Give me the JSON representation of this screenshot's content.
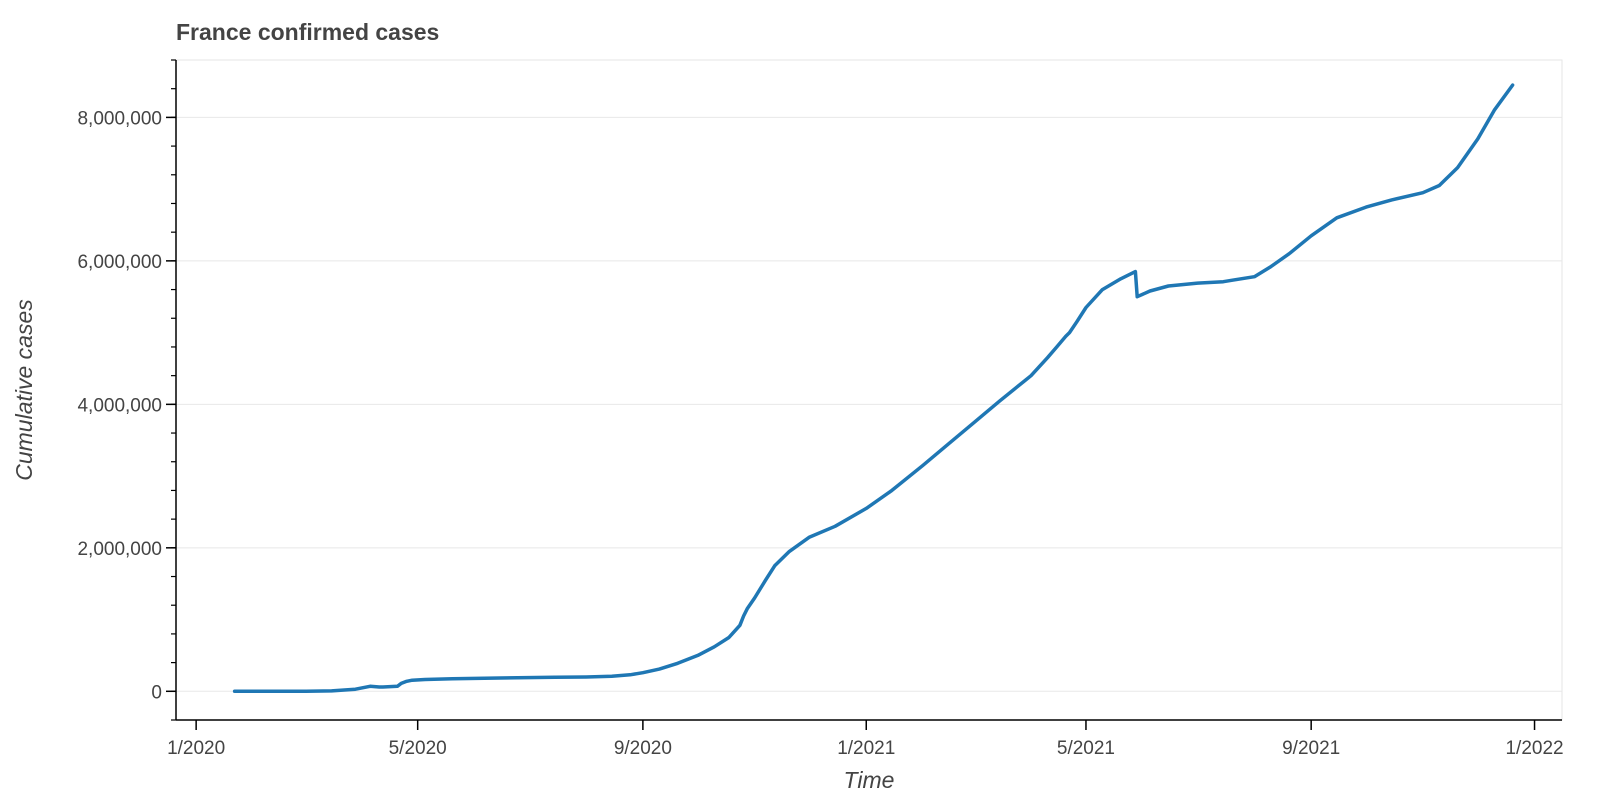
{
  "chart_data": {
    "type": "line",
    "title": "France confirmed cases",
    "xlabel": "Time",
    "ylabel": "Cumulative cases",
    "xlim": [
      "2019-12-21",
      "2022-01-16"
    ],
    "ylim": [
      -400000,
      8800000
    ],
    "grid": {
      "x": false,
      "y": true
    },
    "legend": "none",
    "colors": {
      "line": "#1f77b4",
      "axis": "#000000",
      "grid": "#e8e8e8",
      "frame": "#e6e6e6",
      "text": "#444444"
    },
    "x_ticks": [
      {
        "date": "2020-01-01",
        "label": "1/2020"
      },
      {
        "date": "2020-05-01",
        "label": "5/2020"
      },
      {
        "date": "2020-09-01",
        "label": "9/2020"
      },
      {
        "date": "2021-01-01",
        "label": "1/2021"
      },
      {
        "date": "2021-05-01",
        "label": "5/2021"
      },
      {
        "date": "2021-09-01",
        "label": "9/2021"
      },
      {
        "date": "2022-01-01",
        "label": "1/2022"
      }
    ],
    "y_ticks": [
      {
        "value": 0,
        "label": "0"
      },
      {
        "value": 2000000,
        "label": "2,000,000"
      },
      {
        "value": 4000000,
        "label": "4,000,000"
      },
      {
        "value": 6000000,
        "label": "6,000,000"
      },
      {
        "value": 8000000,
        "label": "8,000,000"
      }
    ],
    "series": [
      {
        "x": [
          "2020-01-22",
          "2020-02-15",
          "2020-03-01",
          "2020-03-15",
          "2020-03-28",
          "2020-04-05",
          "2020-04-10",
          "2020-04-12",
          "2020-04-20",
          "2020-04-22",
          "2020-04-25",
          "2020-04-28",
          "2020-05-05",
          "2020-05-20",
          "2020-06-15",
          "2020-07-15",
          "2020-08-01",
          "2020-08-15",
          "2020-08-25",
          "2020-09-01",
          "2020-09-10",
          "2020-09-20",
          "2020-10-01",
          "2020-10-10",
          "2020-10-18",
          "2020-10-24",
          "2020-10-26",
          "2020-10-28",
          "2020-11-01",
          "2020-11-07",
          "2020-11-12",
          "2020-11-20",
          "2020-12-01",
          "2020-12-15",
          "2021-01-01",
          "2021-01-15",
          "2021-02-01",
          "2021-02-15",
          "2021-03-01",
          "2021-03-15",
          "2021-04-01",
          "2021-04-10",
          "2021-04-15",
          "2021-04-20",
          "2021-04-22",
          "2021-04-26",
          "2021-05-01",
          "2021-05-10",
          "2021-05-20",
          "2021-05-28",
          "2021-05-29",
          "2021-06-05",
          "2021-06-15",
          "2021-07-01",
          "2021-07-15",
          "2021-07-20",
          "2021-08-01",
          "2021-08-10",
          "2021-08-20",
          "2021-09-01",
          "2021-09-15",
          "2021-10-01",
          "2021-10-15",
          "2021-11-01",
          "2021-11-10",
          "2021-11-20",
          "2021-12-01",
          "2021-12-10",
          "2021-12-20"
        ],
        "y": [
          0,
          0,
          0,
          5000,
          30000,
          70000,
          60000,
          60000,
          70000,
          110000,
          140000,
          155000,
          165000,
          175000,
          185000,
          195000,
          200000,
          210000,
          230000,
          260000,
          310000,
          390000,
          500000,
          620000,
          750000,
          920000,
          1050000,
          1150000,
          1300000,
          1550000,
          1750000,
          1950000,
          2150000,
          2300000,
          2550000,
          2800000,
          3150000,
          3450000,
          3750000,
          4050000,
          4400000,
          4650000,
          4800000,
          4950000,
          5000000,
          5150000,
          5350000,
          5600000,
          5750000,
          5850000,
          5500000,
          5580000,
          5650000,
          5690000,
          5710000,
          5730000,
          5780000,
          5920000,
          6100000,
          6350000,
          6600000,
          6750000,
          6850000,
          6950000,
          7050000,
          7300000,
          7700000,
          8100000,
          8450000
        ]
      }
    ]
  }
}
